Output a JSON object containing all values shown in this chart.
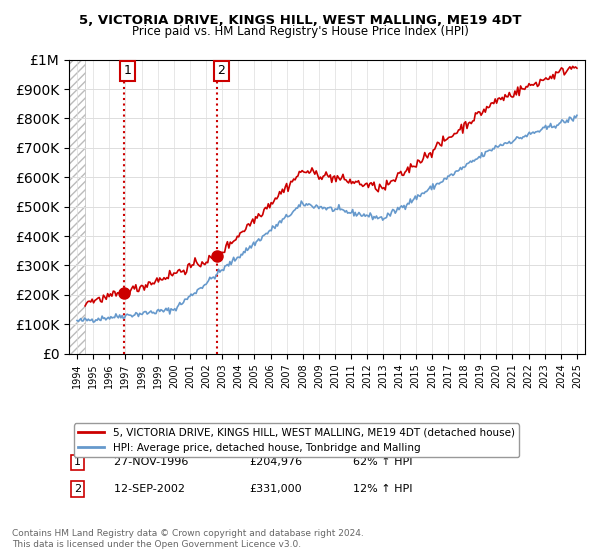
{
  "title": "5, VICTORIA DRIVE, KINGS HILL, WEST MALLING, ME19 4DT",
  "subtitle": "Price paid vs. HM Land Registry's House Price Index (HPI)",
  "legend_line1": "5, VICTORIA DRIVE, KINGS HILL, WEST MALLING, ME19 4DT (detached house)",
  "legend_line2": "HPI: Average price, detached house, Tonbridge and Malling",
  "sale1_label": "1",
  "sale1_date": "27-NOV-1996",
  "sale1_price": 204976,
  "sale1_price_str": "£204,976",
  "sale1_hpi": "62% ↑ HPI",
  "sale1_year": 1996.9,
  "sale2_label": "2",
  "sale2_date": "12-SEP-2002",
  "sale2_price": 331000,
  "sale2_price_str": "£331,000",
  "sale2_hpi": "12% ↑ HPI",
  "sale2_year": 2002.7,
  "xlabel": "",
  "ylabel": "",
  "ylim": [
    0,
    1000000
  ],
  "xlim_start": 1993.5,
  "xlim_end": 2025.5,
  "hatch_end": 1994.5,
  "red_line_color": "#cc0000",
  "blue_line_color": "#6699cc",
  "vline_color": "#cc0000",
  "background_color": "#ffffff",
  "hatch_color": "#cccccc",
  "footnote": "Contains HM Land Registry data © Crown copyright and database right 2024.\nThis data is licensed under the Open Government Licence v3.0."
}
